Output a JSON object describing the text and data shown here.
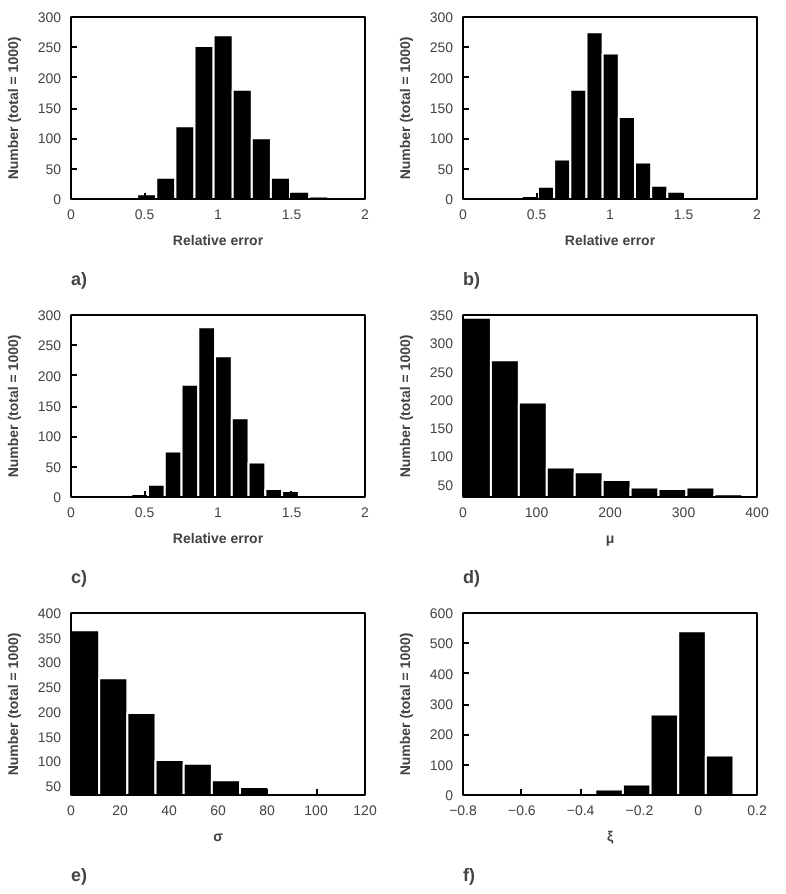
{
  "chart_data": [
    {
      "type": "histogram",
      "xlabel": "Relative error",
      "ylabel": "Number (total = 1000)",
      "annotations": [
        "a)"
      ],
      "color": "#000000",
      "bins": [
        0.45,
        0.58,
        0.71,
        0.84,
        0.97,
        1.1,
        1.23,
        1.36,
        1.49,
        1.62,
        1.75
      ],
      "values": [
        8,
        35,
        120,
        252,
        270,
        180,
        100,
        35,
        12,
        4
      ],
      "xlim": [
        0,
        2
      ],
      "xticks": [
        0,
        0.5,
        1,
        1.5,
        2
      ],
      "ylim": [
        0,
        300
      ],
      "yticks": [
        0,
        50,
        100,
        150,
        200,
        250,
        300
      ],
      "grid": false
    },
    {
      "type": "histogram",
      "xlabel": "Relative error",
      "ylabel": "Number (total = 1000)",
      "annotations": [
        "b)"
      ],
      "color": "#000000",
      "bins": [
        0.4,
        0.51,
        0.62,
        0.73,
        0.84,
        0.95,
        1.06,
        1.17,
        1.28,
        1.39,
        1.5
      ],
      "values": [
        5,
        20,
        65,
        180,
        275,
        240,
        135,
        60,
        22,
        12
      ],
      "xlim": [
        0,
        2
      ],
      "xticks": [
        0,
        0.5,
        1,
        1.5,
        2
      ],
      "ylim": [
        0,
        300
      ],
      "yticks": [
        0,
        50,
        100,
        150,
        200,
        250,
        300
      ],
      "grid": false
    },
    {
      "type": "histogram",
      "xlabel": "Relative error",
      "ylabel": "Number (total = 1000)",
      "annotations": [
        "c)"
      ],
      "color": "#000000",
      "bins": [
        0.41,
        0.524,
        0.638,
        0.752,
        0.866,
        0.98,
        1.094,
        1.208,
        1.322,
        1.436,
        1.55
      ],
      "values": [
        5,
        20,
        75,
        185,
        280,
        232,
        130,
        57,
        13,
        10
      ],
      "xlim": [
        0,
        2
      ],
      "xticks": [
        0,
        0.5,
        1,
        1.5,
        2
      ],
      "ylim": [
        0,
        300
      ],
      "yticks": [
        0,
        50,
        100,
        150,
        200,
        250,
        300
      ],
      "grid": false
    },
    {
      "type": "histogram",
      "xlabel": "μ",
      "ylabel": "Number (total = 1000)",
      "annotations": [
        "d)"
      ],
      "color": "#000000",
      "bins": [
        0,
        38,
        76,
        114,
        152,
        190,
        228,
        266,
        304,
        342,
        380
      ],
      "values": [
        345,
        270,
        195,
        80,
        72,
        58,
        45,
        42,
        45,
        33
      ],
      "xlim": [
        0,
        400
      ],
      "xticks": [
        0,
        100,
        200,
        300,
        400
      ],
      "ylim": [
        28,
        350
      ],
      "yticks": [
        50,
        100,
        150,
        200,
        250,
        300,
        350
      ],
      "grid": false
    },
    {
      "type": "histogram",
      "xlabel": "σ",
      "ylabel": "Number (total = 1000)",
      "annotations": [
        "e)"
      ],
      "color": "#000000",
      "bins": [
        0,
        11.5,
        23,
        34.5,
        46,
        57.5,
        69,
        80.5,
        92,
        103.5,
        115
      ],
      "values": [
        365,
        268,
        198,
        103,
        95,
        62,
        48,
        35,
        35,
        33
      ],
      "xlim": [
        0,
        120
      ],
      "xticks": [
        0,
        20,
        40,
        60,
        80,
        100,
        120
      ],
      "ylim": [
        32,
        400
      ],
      "yticks": [
        50,
        100,
        150,
        200,
        250,
        300,
        350,
        400
      ],
      "grid": false
    },
    {
      "type": "histogram",
      "xlabel": "ξ",
      "ylabel": "Number (total = 1000)",
      "annotations": [
        "f)"
      ],
      "color": "#000000",
      "bins": [
        -0.82,
        -0.726,
        -0.632,
        -0.538,
        -0.444,
        -0.35,
        -0.256,
        -0.162,
        -0.068,
        0.026,
        0.12
      ],
      "values": [
        2,
        0,
        0,
        2,
        5,
        18,
        35,
        265,
        540,
        130
      ],
      "xlim": [
        -0.8,
        0.2
      ],
      "xticks": [
        -0.8,
        -0.6,
        -0.4,
        -0.2,
        0,
        0.2
      ],
      "ylim": [
        0,
        600
      ],
      "yticks": [
        0,
        100,
        200,
        300,
        400,
        500,
        600
      ],
      "grid": false
    }
  ]
}
